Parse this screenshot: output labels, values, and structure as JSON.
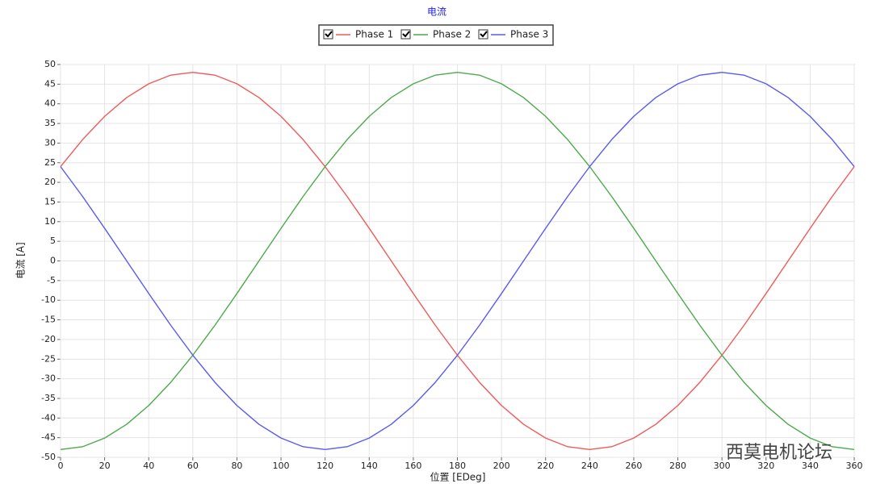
{
  "chart_data": {
    "type": "line",
    "title": "电流",
    "xlabel": "位置 [EDeg]",
    "ylabel": "电流 [A]",
    "watermark": "西莫电机论坛",
    "x": [
      0,
      10,
      20,
      30,
      40,
      50,
      60,
      70,
      80,
      90,
      100,
      110,
      120,
      130,
      140,
      150,
      160,
      170,
      180,
      190,
      200,
      210,
      220,
      230,
      240,
      250,
      260,
      270,
      280,
      290,
      300,
      310,
      320,
      330,
      340,
      350,
      360
    ],
    "series": [
      {
        "name": "Phase 1",
        "color": "#f05a5a",
        "values": [
          24,
          30.9,
          36.8,
          41.6,
          45.1,
          47.3,
          48,
          47.3,
          45.1,
          41.6,
          36.8,
          30.9,
          24,
          16.4,
          8.3,
          0,
          -8.3,
          -16.4,
          -24,
          -30.9,
          -36.8,
          -41.6,
          -45.1,
          -47.3,
          -48,
          -47.3,
          -45.1,
          -41.6,
          -36.8,
          -30.9,
          -24,
          -16.4,
          -8.3,
          0,
          8.3,
          16.4,
          24
        ]
      },
      {
        "name": "Phase 2",
        "color": "#4caa4c",
        "values": [
          -48,
          -47.3,
          -45.1,
          -41.6,
          -36.8,
          -30.9,
          -24,
          -16.4,
          -8.3,
          0,
          8.3,
          16.4,
          24,
          30.9,
          36.8,
          41.6,
          45.1,
          47.3,
          48,
          47.3,
          45.1,
          41.6,
          36.8,
          30.9,
          24,
          16.4,
          8.3,
          0,
          -8.3,
          -16.4,
          -24,
          -30.9,
          -36.8,
          -41.6,
          -45.1,
          -47.3,
          -48
        ]
      },
      {
        "name": "Phase 3",
        "color": "#5a5af0",
        "values": [
          24,
          16.4,
          8.3,
          0,
          -8.3,
          -16.4,
          -24,
          -30.9,
          -36.8,
          -41.6,
          -45.1,
          -47.3,
          -48,
          -47.3,
          -45.1,
          -41.6,
          -36.8,
          -30.9,
          -24,
          -16.4,
          -8.3,
          0,
          8.3,
          16.4,
          24,
          30.9,
          36.8,
          41.6,
          45.1,
          47.3,
          48,
          47.3,
          45.1,
          41.6,
          36.8,
          30.9,
          24
        ]
      }
    ],
    "xlim": [
      0,
      360
    ],
    "xticks": [
      0,
      20,
      40,
      60,
      80,
      100,
      120,
      140,
      160,
      180,
      200,
      220,
      240,
      260,
      280,
      300,
      320,
      340,
      360
    ],
    "ylim": [
      -50,
      50
    ],
    "yticks": [
      -50,
      -45,
      -40,
      -35,
      -30,
      -25,
      -20,
      -15,
      -10,
      -5,
      0,
      5,
      10,
      15,
      20,
      25,
      30,
      35,
      40,
      45,
      50
    ],
    "grid": true
  }
}
